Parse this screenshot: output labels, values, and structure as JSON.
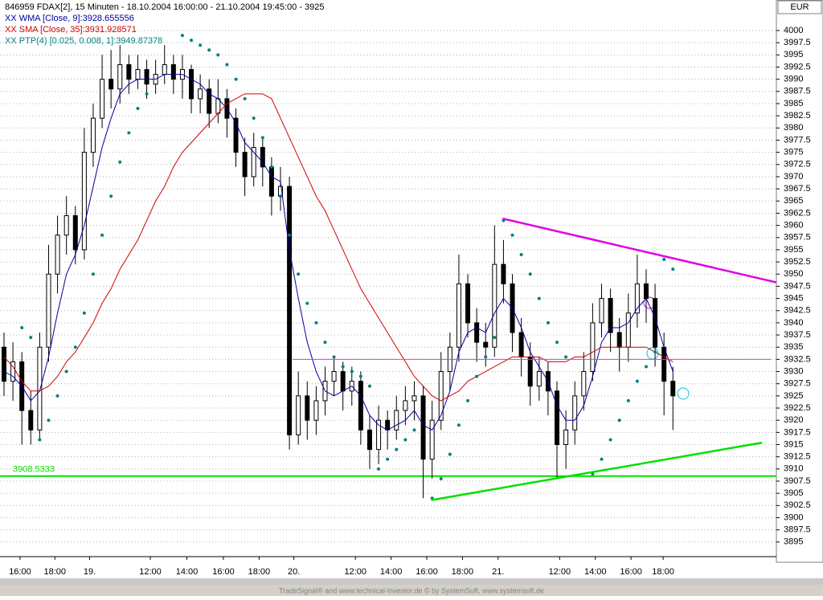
{
  "chart_data": {
    "type": "candlestick",
    "title": "846959  FDAX[2], 15 Minuten - 18.10.2004 16:00:00 - 21.10.2004 19:45:00 - 3925",
    "currency": "EUR",
    "footer": "TradeSignal® and www.technical-investor.de © by SystemSoft, www.systemsoft.de",
    "grid": true,
    "xlim": [
      -0.45,
      86.6
    ],
    "xticks": [
      {
        "value": 1.8,
        "label": "16:00"
      },
      {
        "value": 5.7,
        "label": "18:00"
      },
      {
        "value": 9.6,
        "label": "19."
      },
      {
        "value": 16.4,
        "label": "12:00"
      },
      {
        "value": 20.5,
        "label": "14:00"
      },
      {
        "value": 24.6,
        "label": "16:00"
      },
      {
        "value": 28.6,
        "label": "18:00"
      },
      {
        "value": 32.5,
        "label": "20."
      },
      {
        "value": 39.4,
        "label": "12:00"
      },
      {
        "value": 43.4,
        "label": "14:00"
      },
      {
        "value": 47.4,
        "label": "16:00"
      },
      {
        "value": 51.4,
        "label": "18:00"
      },
      {
        "value": 55.4,
        "label": "21."
      },
      {
        "value": 62.3,
        "label": "12:00"
      },
      {
        "value": 66.3,
        "label": "14:00"
      },
      {
        "value": 70.3,
        "label": "16:00"
      },
      {
        "value": 73.9,
        "label": "18:00"
      }
    ],
    "ylim": [
      3892,
      4003.3
    ],
    "yticks": [
      3895,
      3897.5,
      3900,
      3902.5,
      3905,
      3907.5,
      3910,
      3912.5,
      3915,
      3917.5,
      3920,
      3922.5,
      3925,
      3927.5,
      3930,
      3932.5,
      3935,
      3937.5,
      3940,
      3942.5,
      3945,
      3947.5,
      3950,
      3952.5,
      3955,
      3957.5,
      3960,
      3962.5,
      3965,
      3967.5,
      3970,
      3972.5,
      3975,
      3977.5,
      3980,
      3982.5,
      3985,
      3987.5,
      3990,
      3992.5,
      3995,
      3997.5,
      4000
    ],
    "open": [
      3935,
      3928,
      3932,
      3922,
      3918,
      3935,
      3950,
      3958,
      3962,
      3955,
      3975,
      3982,
      3990,
      3988,
      3993,
      3990,
      3992,
      3989,
      3991,
      3993,
      3990,
      3992,
      3986,
      3988,
      3983,
      3986,
      3982,
      3975,
      3970,
      3976,
      3972,
      3966,
      3968,
      3917,
      3925,
      3920,
      3924,
      3928,
      3930,
      3926,
      3928,
      3918,
      3914,
      3920,
      3918,
      3922,
      3924,
      3925,
      3912,
      3920,
      3930,
      3935,
      3948,
      3940,
      3936,
      3935,
      3952,
      3948,
      3938,
      3933,
      3927,
      3930,
      3926,
      3915,
      3918,
      3925,
      3930,
      3940,
      3945,
      3938,
      3935,
      3942,
      3948,
      3945,
      3935,
      3928
    ],
    "high": [
      3938,
      3936,
      3934,
      3926,
      3938,
      3956,
      3962,
      3966,
      3964,
      3980,
      3985,
      3995,
      3996,
      3997,
      3995,
      3995,
      3994,
      3994,
      3997,
      3995,
      3995,
      3993,
      3991,
      3990,
      3990,
      3988,
      3984,
      3978,
      3979,
      3978,
      3974,
      3972,
      3970,
      3930,
      3928,
      3927,
      3931,
      3933,
      3932,
      3931,
      3930,
      3921,
      3923,
      3922,
      3925,
      3927,
      3928,
      3927,
      3924,
      3934,
      3938,
      3954,
      3950,
      3943,
      3940,
      3960,
      3957,
      3950,
      3941,
      3936,
      3933,
      3932,
      3928,
      3922,
      3928,
      3934,
      3944,
      3948,
      3947,
      3941,
      3946,
      3954,
      3951,
      3948,
      3938,
      3931
    ],
    "low": [
      3925,
      3924,
      3915,
      3915,
      3916,
      3932,
      3946,
      3954,
      3952,
      3953,
      3972,
      3980,
      3984,
      3985,
      3987,
      3988,
      3986,
      3987,
      3989,
      3987,
      3986,
      3983,
      3983,
      3980,
      3981,
      3978,
      3972,
      3966,
      3968,
      3968,
      3962,
      3963,
      3914,
      3915,
      3916,
      3917,
      3921,
      3925,
      3922,
      3923,
      3915,
      3910,
      3911,
      3914,
      3916,
      3919,
      3920,
      3904,
      3908,
      3918,
      3926,
      3932,
      3937,
      3932,
      3931,
      3933,
      3944,
      3934,
      3929,
      3923,
      3924,
      3921,
      3908,
      3910,
      3915,
      3922,
      3928,
      3937,
      3934,
      3930,
      3932,
      3939,
      3940,
      3931,
      3921,
      3918
    ],
    "close": [
      3928,
      3932,
      3922,
      3918,
      3935,
      3950,
      3958,
      3962,
      3955,
      3975,
      3982,
      3990,
      3988,
      3993,
      3990,
      3992,
      3989,
      3991,
      3993,
      3990,
      3992,
      3986,
      3988,
      3983,
      3986,
      3982,
      3975,
      3970,
      3976,
      3972,
      3966,
      3968,
      3917,
      3925,
      3920,
      3924,
      3928,
      3930,
      3926,
      3928,
      3918,
      3914,
      3920,
      3918,
      3922,
      3924,
      3925,
      3912,
      3920,
      3930,
      3935,
      3948,
      3940,
      3936,
      3935,
      3952,
      3948,
      3938,
      3933,
      3927,
      3930,
      3926,
      3915,
      3918,
      3925,
      3930,
      3940,
      3945,
      3938,
      3935,
      3942,
      3948,
      3945,
      3935,
      3928,
      3925
    ],
    "series": [
      {
        "name": "XX WMA [Close, 9]:3928.655556",
        "color": "#0000a0",
        "style": "line",
        "values": [
          3930,
          3929,
          3927,
          3924,
          3926,
          3933,
          3942,
          3950,
          3954,
          3960,
          3968,
          3976,
          3982,
          3987,
          3989,
          3990,
          3990,
          3990,
          3991,
          3991,
          3991,
          3990,
          3989,
          3987,
          3986,
          3984,
          3981,
          3977,
          3975,
          3973,
          3970,
          3969,
          3955,
          3945,
          3936,
          3930,
          3926,
          3925,
          3926,
          3927,
          3925,
          3921,
          3919,
          3918,
          3919,
          3920,
          3922,
          3919,
          3918,
          3921,
          3926,
          3934,
          3938,
          3939,
          3938,
          3942,
          3945,
          3943,
          3939,
          3934,
          3931,
          3928,
          3923,
          3920,
          3920,
          3923,
          3929,
          3936,
          3939,
          3939,
          3940,
          3943,
          3945,
          3941,
          3935,
          3930
        ]
      },
      {
        "name": "XX SMA [Close, 35]:3931.928571",
        "color": "#d00000",
        "style": "line",
        "values": [
          3933,
          3931,
          3928,
          3926,
          3926,
          3927,
          3929,
          3932,
          3934,
          3937,
          3940,
          3944,
          3947,
          3951,
          3954,
          3957,
          3961,
          3965,
          3968,
          3972,
          3975,
          3977,
          3979,
          3981,
          3983,
          3985,
          3986,
          3987,
          3987,
          3987,
          3986,
          3982,
          3978,
          3974,
          3970,
          3966,
          3963,
          3959,
          3955,
          3951,
          3947,
          3944,
          3941,
          3938,
          3935,
          3932,
          3929,
          3927,
          3925,
          3924,
          3925,
          3926,
          3928,
          3929,
          3930,
          3931,
          3932,
          3933,
          3933,
          3933,
          3933,
          3932,
          3932,
          3932,
          3933,
          3933,
          3934,
          3935,
          3935,
          3935,
          3935,
          3935,
          3935,
          3934,
          3933,
          3932
        ]
      },
      {
        "name": "XX PTP(4) [0.025, 0.008, 1]:3949.87378",
        "color": "#008080",
        "style": "dots",
        "values": [
          null,
          null,
          3939,
          3937,
          3916,
          3920,
          3925,
          3930,
          3935,
          3942,
          3950,
          3958,
          3966,
          3973,
          3979,
          3984,
          3987,
          null,
          null,
          null,
          3999,
          3998,
          3997,
          3996,
          3995,
          3993,
          3990,
          3986,
          3982,
          3978,
          3972,
          3966,
          3958,
          3950,
          3944,
          3940,
          3936,
          3933,
          3931,
          3930,
          3929,
          3927,
          3910,
          3912,
          3914,
          3916,
          3918,
          null,
          3904,
          3908,
          3913,
          3919,
          3924,
          3929,
          3933,
          3937,
          3961,
          3958,
          3954,
          3950,
          3945,
          3940,
          3936,
          3933,
          null,
          null,
          3909,
          3912,
          3916,
          3920,
          3924,
          3928,
          3931,
          3934,
          3953,
          3951
        ]
      }
    ],
    "hline": {
      "value": 3908.5333,
      "color": "#00e000"
    },
    "trend_lines": [
      {
        "x": [
          55.9,
          86.6
        ],
        "y": [
          3961.4,
          3948.3
        ],
        "color": "#e000e0"
      },
      {
        "x": [
          47.9,
          85
        ],
        "y": [
          3903.6,
          3915.4
        ],
        "color": "#00e000"
      },
      {
        "x": [
          32.4,
          86
        ],
        "y": [
          3932.5,
          3932.5
        ],
        "color": "#d040d0"
      }
    ]
  }
}
